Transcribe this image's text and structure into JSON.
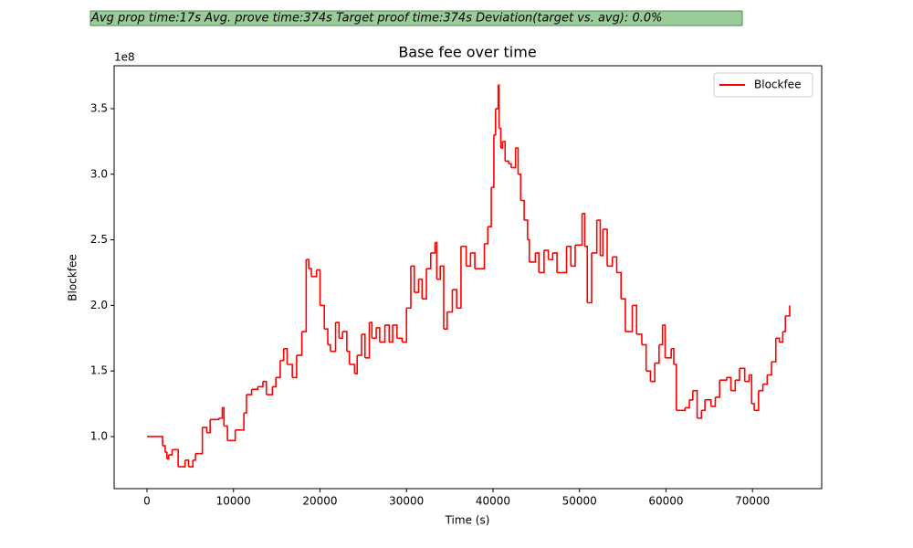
{
  "chart_data": {
    "type": "line",
    "title": "Base fee over time",
    "annotation": "Avg prop time:17s    Avg. prove time:374s    Target proof time:374s    Deviation(target vs. avg): 0.0%",
    "x_label": "Time (s)",
    "y_label": "Blockfee",
    "y_offset_label": "1e8",
    "drawstyle": "steps-post",
    "legend": "upper right",
    "xlim": [
      -3800,
      78000
    ],
    "ylim": [
      0.603,
      3.827
    ],
    "xticks": [
      0,
      10000,
      20000,
      30000,
      40000,
      50000,
      60000,
      70000
    ],
    "yticks": [
      {
        "value": 1,
        "label": "1.0"
      },
      {
        "value": 1.5,
        "label": "1.5"
      },
      {
        "value": 2,
        "label": "2.0"
      },
      {
        "value": 2.5,
        "label": "2.5"
      },
      {
        "value": 3,
        "label": "3.0"
      },
      {
        "value": 3.5,
        "label": "3.5"
      }
    ],
    "series": [
      {
        "name": "Blockfee",
        "color": "#ff0000",
        "x": [
          0,
          1800,
          2100,
          2300,
          2500,
          2900,
          3500,
          3600,
          4100,
          4400,
          4800,
          5300,
          5600,
          6100,
          6400,
          6900,
          7300,
          8300,
          8700,
          8900,
          9300,
          10000,
          10200,
          11000,
          11200,
          11500,
          12100,
          12800,
          13400,
          13800,
          14500,
          14900,
          15400,
          15800,
          16200,
          16800,
          17300,
          17900,
          18400,
          18700,
          19000,
          19600,
          20000,
          20500,
          20900,
          21200,
          21800,
          22200,
          22600,
          23100,
          23400,
          24000,
          24300,
          24800,
          25200,
          25700,
          26000,
          26500,
          26900,
          27500,
          28000,
          28400,
          28900,
          29500,
          30000,
          30500,
          30900,
          31400,
          31800,
          32300,
          32800,
          33300,
          33500,
          33900,
          34300,
          34700,
          35300,
          35800,
          36300,
          36900,
          37400,
          37900,
          38600,
          39000,
          39400,
          39800,
          40100,
          40300,
          40600,
          40700,
          40900,
          41100,
          41400,
          41800,
          42100,
          42600,
          42900,
          43200,
          43600,
          44000,
          44200,
          44900,
          45300,
          45900,
          46400,
          46900,
          47400,
          48000,
          48500,
          49000,
          49500,
          50300,
          50600,
          50900,
          51400,
          52000,
          52400,
          52700,
          53200,
          53800,
          54300,
          54800,
          55300,
          56100,
          56600,
          57200,
          57700,
          58200,
          58700,
          59200,
          59600,
          59900,
          60600,
          60900,
          61200,
          62200,
          62700,
          63100,
          63600,
          64100,
          64500,
          65200,
          65700,
          66200,
          67000,
          67500,
          68000,
          68500,
          69100,
          69600,
          69900,
          70200,
          70700,
          71200,
          71700,
          72200,
          72700,
          73100,
          73500,
          73800,
          74300
        ],
        "values": [
          1.0,
          0.93,
          0.88,
          0.83,
          0.86,
          0.9,
          0.9,
          0.77,
          0.77,
          0.82,
          0.77,
          0.82,
          0.87,
          0.87,
          1.07,
          1.03,
          1.13,
          1.14,
          1.22,
          1.08,
          0.97,
          0.97,
          1.05,
          1.05,
          1.18,
          1.32,
          1.36,
          1.38,
          1.42,
          1.32,
          1.38,
          1.45,
          1.58,
          1.67,
          1.55,
          1.45,
          1.62,
          1.8,
          2.35,
          2.28,
          2.22,
          2.27,
          2.0,
          1.82,
          1.7,
          1.65,
          1.87,
          1.75,
          1.8,
          1.65,
          1.55,
          1.48,
          1.62,
          1.78,
          1.6,
          1.87,
          1.75,
          1.83,
          1.72,
          1.85,
          1.72,
          1.85,
          1.75,
          1.72,
          1.98,
          2.3,
          2.1,
          2.2,
          2.05,
          2.28,
          2.4,
          2.48,
          2.2,
          2.3,
          1.82,
          1.95,
          2.12,
          1.98,
          2.45,
          2.3,
          2.4,
          2.28,
          2.28,
          2.47,
          2.6,
          2.9,
          3.3,
          3.5,
          3.68,
          3.35,
          3.2,
          3.25,
          3.1,
          3.08,
          3.05,
          3.2,
          3.0,
          2.8,
          2.65,
          2.5,
          2.33,
          2.4,
          2.25,
          2.42,
          2.35,
          2.4,
          2.25,
          2.25,
          2.45,
          2.3,
          2.46,
          2.7,
          2.45,
          2.02,
          2.4,
          2.65,
          2.38,
          2.58,
          2.3,
          2.37,
          2.25,
          2.05,
          1.8,
          2.0,
          1.78,
          1.7,
          1.5,
          1.42,
          1.56,
          1.7,
          1.85,
          1.6,
          1.67,
          1.55,
          1.2,
          1.22,
          1.28,
          1.35,
          1.14,
          1.2,
          1.28,
          1.23,
          1.3,
          1.43,
          1.45,
          1.35,
          1.43,
          1.52,
          1.42,
          1.47,
          1.25,
          1.2,
          1.35,
          1.4,
          1.47,
          1.57,
          1.75,
          1.72,
          1.8,
          1.92,
          2.0
        ]
      }
    ]
  }
}
